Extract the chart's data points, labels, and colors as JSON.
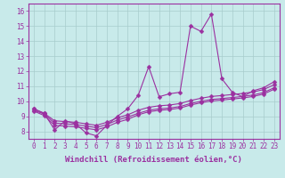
{
  "line1_x": [
    0,
    1,
    2,
    3,
    4,
    5,
    6,
    7,
    8,
    9,
    10,
    11,
    12,
    13,
    14,
    15,
    16,
    17,
    18,
    19,
    20,
    21,
    22,
    23
  ],
  "line1_y": [
    9.5,
    9.2,
    8.1,
    8.7,
    8.5,
    7.9,
    7.7,
    8.4,
    9.0,
    9.5,
    10.4,
    12.3,
    10.3,
    10.5,
    10.6,
    15.0,
    14.65,
    15.8,
    11.5,
    10.6,
    10.3,
    10.7,
    10.9,
    11.3
  ],
  "line2_x": [
    0,
    1,
    2,
    3,
    4,
    5,
    6,
    7,
    8,
    9,
    10,
    11,
    12,
    13,
    14,
    15,
    16,
    17,
    18,
    19,
    20,
    21,
    22,
    23
  ],
  "line2_y": [
    9.5,
    9.2,
    8.7,
    8.65,
    8.6,
    8.5,
    8.4,
    8.6,
    8.9,
    9.1,
    9.4,
    9.6,
    9.7,
    9.75,
    9.85,
    10.05,
    10.2,
    10.32,
    10.38,
    10.45,
    10.52,
    10.62,
    10.78,
    11.1
  ],
  "line3_x": [
    0,
    1,
    2,
    3,
    4,
    5,
    6,
    7,
    8,
    9,
    10,
    11,
    12,
    13,
    14,
    15,
    16,
    17,
    18,
    19,
    20,
    21,
    22,
    23
  ],
  "line3_y": [
    9.4,
    9.15,
    8.55,
    8.5,
    8.45,
    8.35,
    8.25,
    8.45,
    8.75,
    8.95,
    9.2,
    9.4,
    9.5,
    9.55,
    9.65,
    9.85,
    10.0,
    10.12,
    10.18,
    10.25,
    10.32,
    10.42,
    10.58,
    10.9
  ],
  "line4_x": [
    0,
    1,
    2,
    3,
    4,
    5,
    6,
    7,
    8,
    9,
    10,
    11,
    12,
    13,
    14,
    15,
    16,
    17,
    18,
    19,
    20,
    21,
    22,
    23
  ],
  "line4_y": [
    9.35,
    9.05,
    8.4,
    8.35,
    8.3,
    8.2,
    8.1,
    8.3,
    8.6,
    8.8,
    9.1,
    9.3,
    9.4,
    9.45,
    9.55,
    9.75,
    9.9,
    10.02,
    10.08,
    10.15,
    10.22,
    10.32,
    10.48,
    10.8
  ],
  "line_color": "#9B30A0",
  "bg_color": "#C8EAEA",
  "grid_color": "#A8CCCC",
  "xlabel": "Windchill (Refroidissement éolien,°C)",
  "ylim": [
    7.5,
    16.5
  ],
  "xlim": [
    -0.5,
    23.5
  ],
  "yticks": [
    8,
    9,
    10,
    11,
    12,
    13,
    14,
    15,
    16
  ],
  "xticks": [
    0,
    1,
    2,
    3,
    4,
    5,
    6,
    7,
    8,
    9,
    10,
    11,
    12,
    13,
    14,
    15,
    16,
    17,
    18,
    19,
    20,
    21,
    22,
    23
  ],
  "marker": "D",
  "marker_size": 2.5,
  "line_width": 0.8,
  "xlabel_fontsize": 6.5,
  "tick_fontsize": 5.5
}
